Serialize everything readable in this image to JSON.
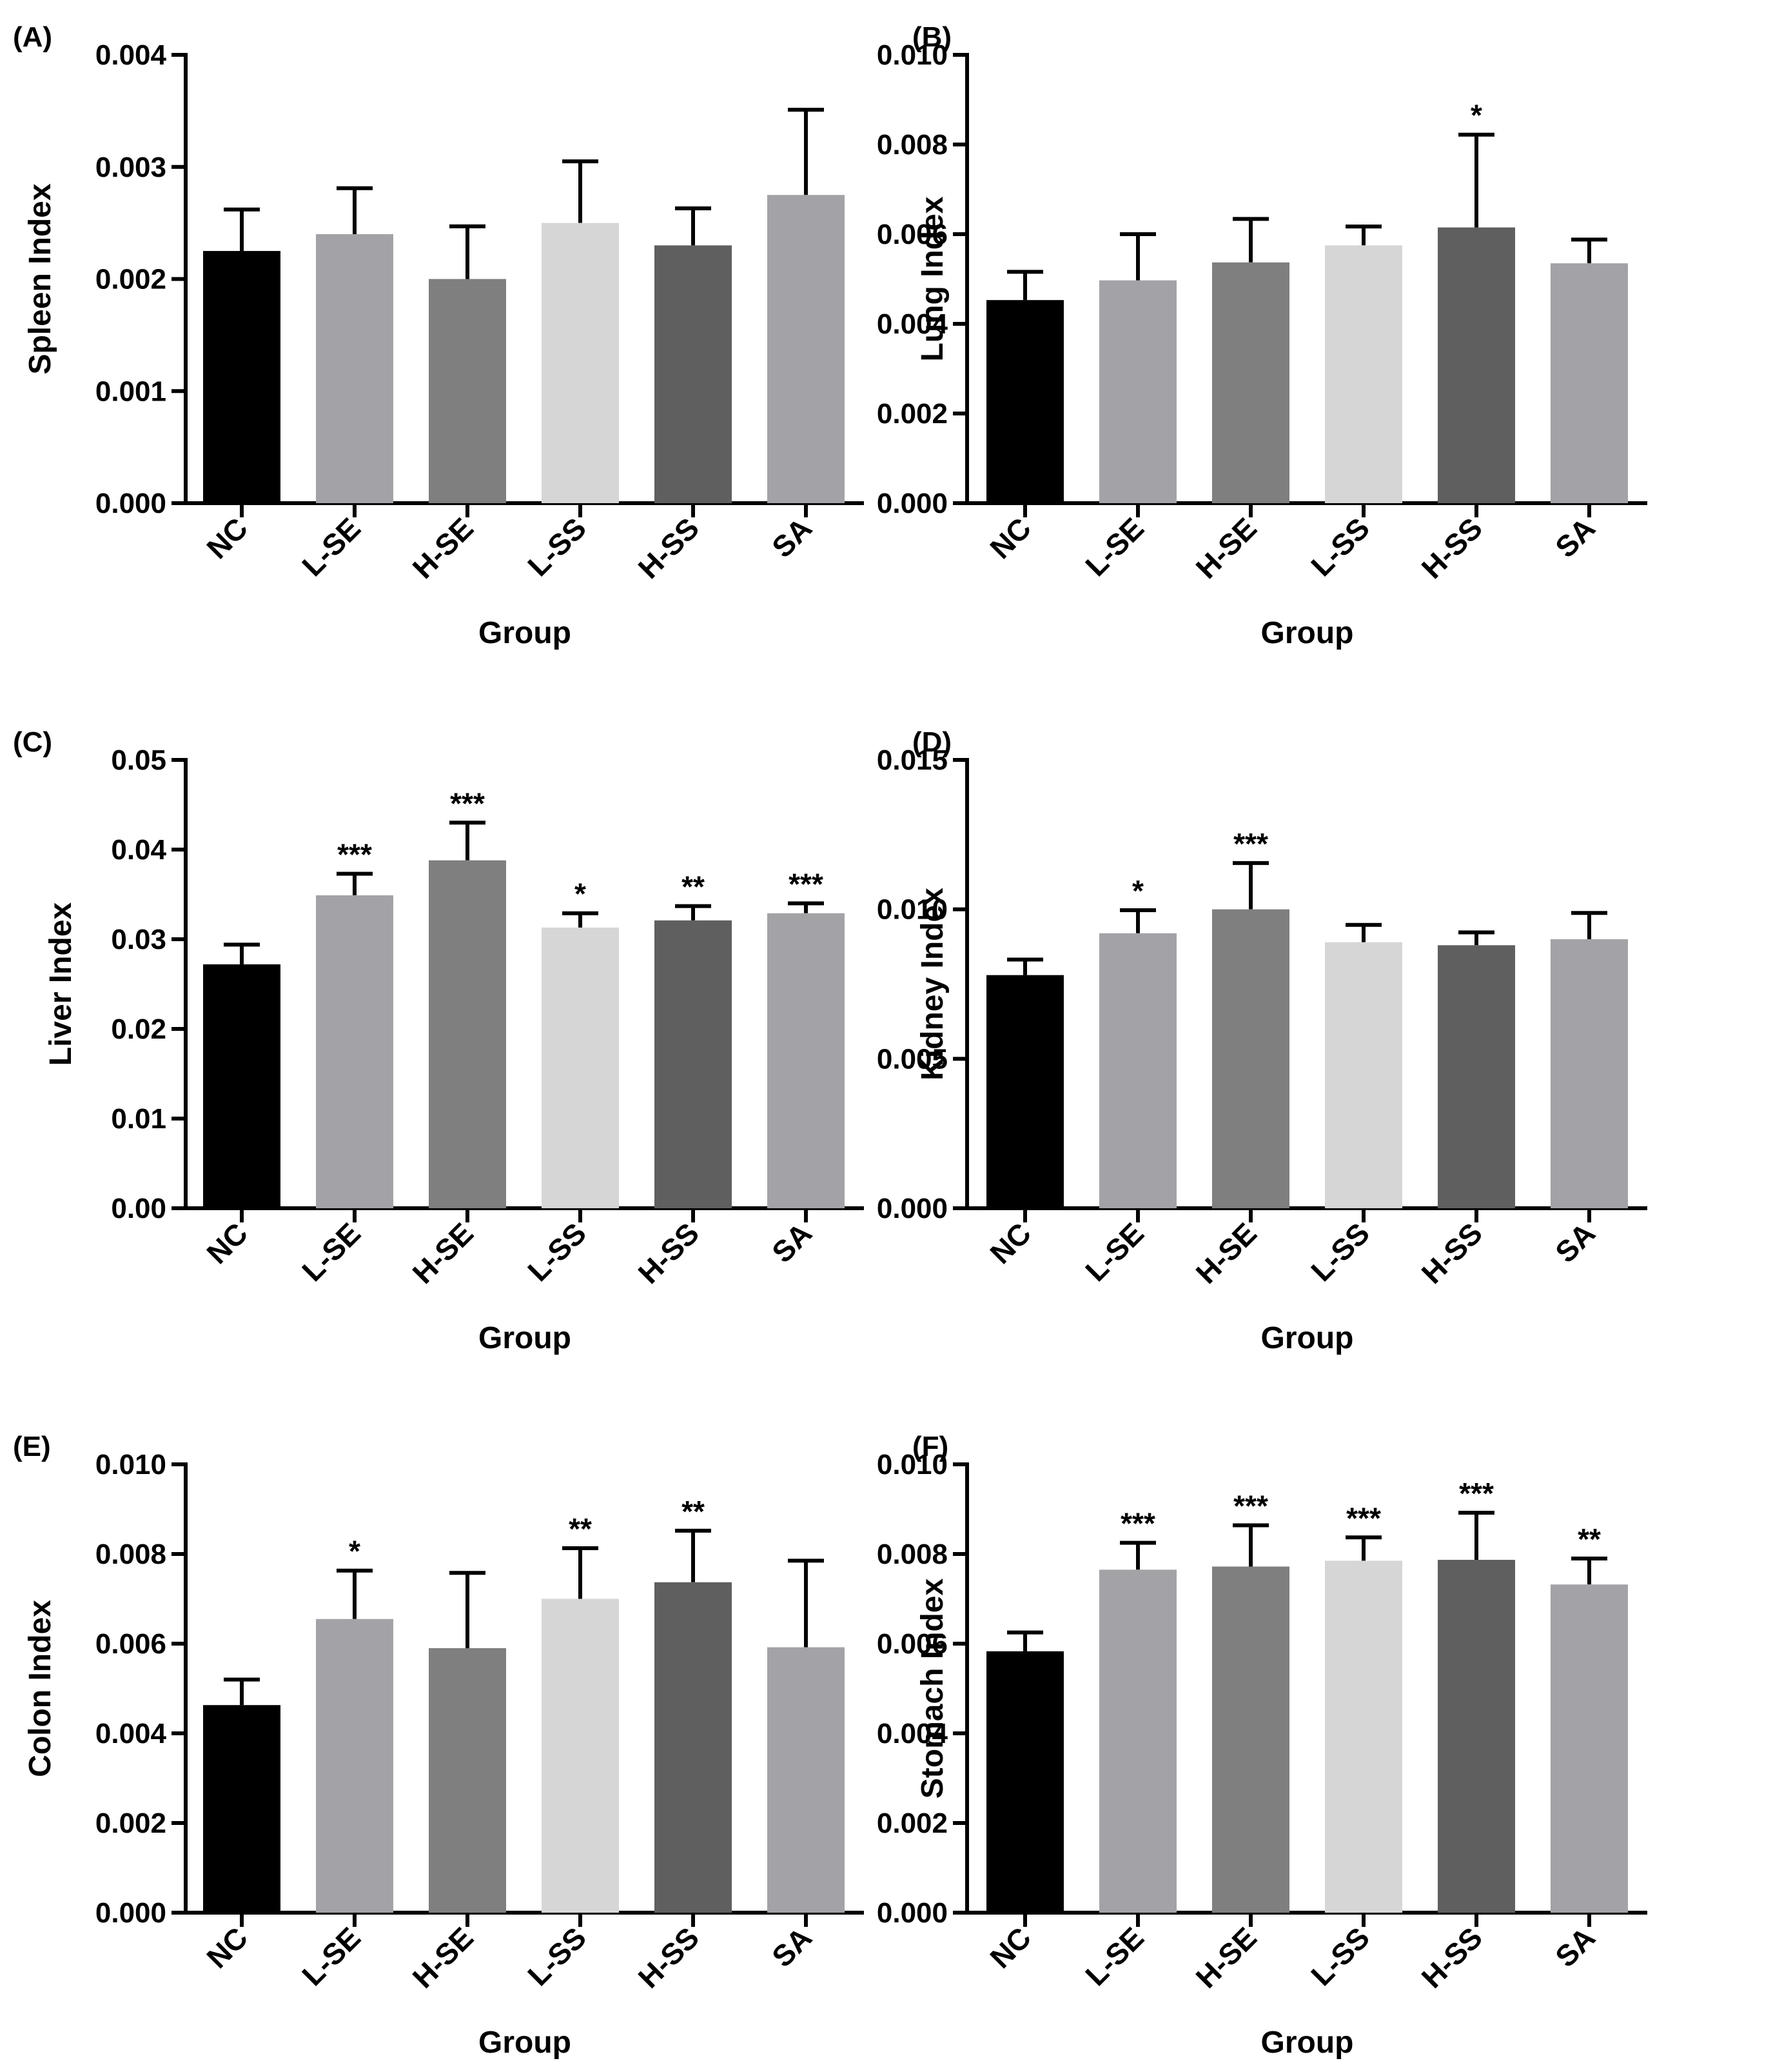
{
  "chart_data": [
    {
      "type": "bar",
      "panel_label": "(A)",
      "categories": [
        "NC",
        "L-SE",
        "H-SE",
        "L-SS",
        "H-SS",
        "SA"
      ],
      "values": [
        0.00225,
        0.0024,
        0.002,
        0.0025,
        0.0023,
        0.00275
      ],
      "errors": [
        0.00037,
        0.00041,
        0.00047,
        0.00055,
        0.00033,
        0.00076
      ],
      "significance": [
        "",
        "",
        "",
        "",
        "",
        ""
      ],
      "ylabel": "Spleen Index",
      "xlabel": "Group",
      "ylim": [
        0,
        0.004
      ],
      "yticks": [
        "0.000",
        "0.001",
        "0.002",
        "0.003",
        "0.004"
      ]
    },
    {
      "type": "bar",
      "panel_label": "(B)",
      "categories": [
        "NC",
        "L-SE",
        "H-SE",
        "L-SS",
        "H-SS",
        "SA"
      ],
      "values": [
        0.00453,
        0.00497,
        0.00537,
        0.00575,
        0.00615,
        0.00535
      ],
      "errors": [
        0.00063,
        0.00103,
        0.00097,
        0.00042,
        0.00207,
        0.00053
      ],
      "significance": [
        "",
        "",
        "",
        "",
        "*",
        ""
      ],
      "ylabel": "Lung Index",
      "xlabel": "Group",
      "ylim": [
        0,
        0.01
      ],
      "yticks": [
        "0.000",
        "0.002",
        "0.004",
        "0.006",
        "0.008",
        "0.010"
      ]
    },
    {
      "type": "bar",
      "panel_label": "(C)",
      "categories": [
        "NC",
        "L-SE",
        "H-SE",
        "L-SS",
        "H-SS",
        "SA"
      ],
      "values": [
        0.0272,
        0.0349,
        0.0388,
        0.0313,
        0.0321,
        0.0329
      ],
      "errors": [
        0.0022,
        0.0024,
        0.0042,
        0.0016,
        0.0016,
        0.0011
      ],
      "significance": [
        "",
        "***",
        "***",
        "*",
        "**",
        "***"
      ],
      "ylabel": "Liver Index",
      "xlabel": "Group",
      "ylim": [
        0,
        0.05
      ],
      "yticks": [
        "0.00",
        "0.01",
        "0.02",
        "0.03",
        "0.04",
        "0.05"
      ]
    },
    {
      "type": "bar",
      "panel_label": "(D)",
      "categories": [
        "NC",
        "L-SE",
        "H-SE",
        "L-SS",
        "H-SS",
        "SA"
      ],
      "values": [
        0.0078,
        0.0092,
        0.01,
        0.0089,
        0.0088,
        0.009
      ],
      "errors": [
        0.00052,
        0.00077,
        0.00155,
        0.00058,
        0.00043,
        0.00088
      ],
      "significance": [
        "",
        "*",
        "***",
        "",
        "",
        ""
      ],
      "ylabel": "Kidney Index",
      "xlabel": "Group",
      "ylim": [
        0,
        0.015
      ],
      "yticks": [
        "0.000",
        "0.005",
        "0.010",
        "0.015"
      ]
    },
    {
      "type": "bar",
      "panel_label": "(E)",
      "categories": [
        "NC",
        "L-SE",
        "H-SE",
        "L-SS",
        "H-SS",
        "SA"
      ],
      "values": [
        0.00463,
        0.00655,
        0.0059,
        0.007,
        0.00737,
        0.00592
      ],
      "errors": [
        0.00057,
        0.00108,
        0.00168,
        0.00113,
        0.00115,
        0.00193
      ],
      "significance": [
        "",
        "*",
        "",
        "**",
        "**",
        ""
      ],
      "ylabel": "Colon Index",
      "xlabel": "Group",
      "ylim": [
        0,
        0.01
      ],
      "yticks": [
        "0.000",
        "0.002",
        "0.004",
        "0.006",
        "0.008",
        "0.010"
      ]
    },
    {
      "type": "bar",
      "panel_label": "(F)",
      "categories": [
        "NC",
        "L-SE",
        "H-SE",
        "L-SS",
        "H-SS",
        "SA"
      ],
      "values": [
        0.00583,
        0.00765,
        0.00772,
        0.00785,
        0.00787,
        0.00732
      ],
      "errors": [
        0.00042,
        0.0006,
        0.00092,
        0.00052,
        0.00105,
        0.00058
      ],
      "significance": [
        "",
        "***",
        "***",
        "***",
        "***",
        "**"
      ],
      "ylabel": "Stomach Index",
      "xlabel": "Group",
      "ylim": [
        0,
        0.01
      ],
      "yticks": [
        "0.000",
        "0.002",
        "0.004",
        "0.006",
        "0.008",
        "0.010"
      ]
    }
  ],
  "bar_colors": [
    "#000000",
    "#a3a3a7",
    "#7f7f7f",
    "#d6d6d6",
    "#5f5f5f",
    "#a3a3a7"
  ]
}
